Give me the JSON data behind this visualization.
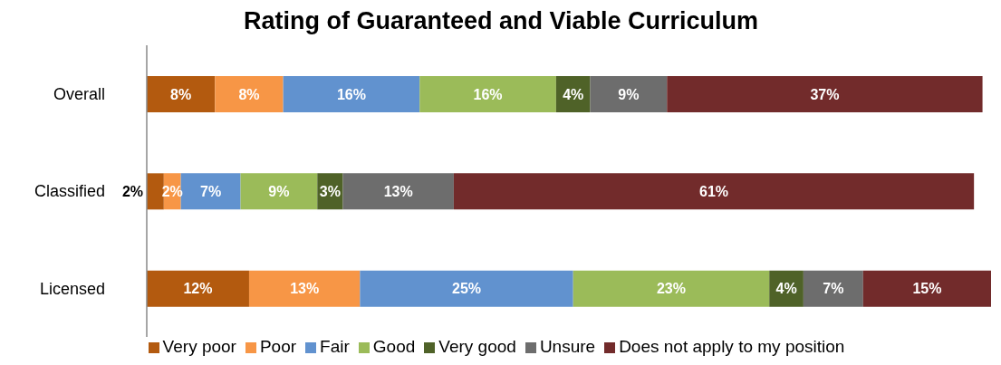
{
  "chart_data": {
    "type": "bar",
    "title": "Rating of Guaranteed and Viable Curriculum",
    "orientation": "horizontal",
    "stacked": true,
    "categories": [
      "Overall",
      "Classified",
      "Licensed"
    ],
    "series": [
      {
        "name": "Very poor",
        "color": "#b35a0f",
        "values": [
          8,
          2,
          12
        ],
        "value_labels": [
          "8%",
          "2%",
          "12%"
        ]
      },
      {
        "name": "Poor",
        "color": "#f79646",
        "values": [
          8,
          2,
          13
        ],
        "value_labels": [
          "8%",
          "2%",
          "13%"
        ]
      },
      {
        "name": "Fair",
        "color": "#6192cf",
        "values": [
          16,
          7,
          25
        ],
        "value_labels": [
          "16%",
          "7%",
          "25%"
        ]
      },
      {
        "name": "Good",
        "color": "#9bbb59",
        "values": [
          16,
          9,
          23
        ],
        "value_labels": [
          "16%",
          "9%",
          "23%"
        ]
      },
      {
        "name": "Very good",
        "color": "#4f6228",
        "values": [
          4,
          3,
          4
        ],
        "value_labels": [
          "4%",
          "3%",
          "4%"
        ]
      },
      {
        "name": "Unsure",
        "color": "#6d6d6d",
        "values": [
          9,
          13,
          7
        ],
        "value_labels": [
          "9%",
          "13%",
          "7%"
        ]
      },
      {
        "name": "Does not apply to my position",
        "color": "#722b2b",
        "values": [
          37,
          61,
          15
        ],
        "value_labels": [
          "37%",
          "61%",
          "15%"
        ]
      }
    ],
    "legend": "bottom",
    "grid": false
  }
}
